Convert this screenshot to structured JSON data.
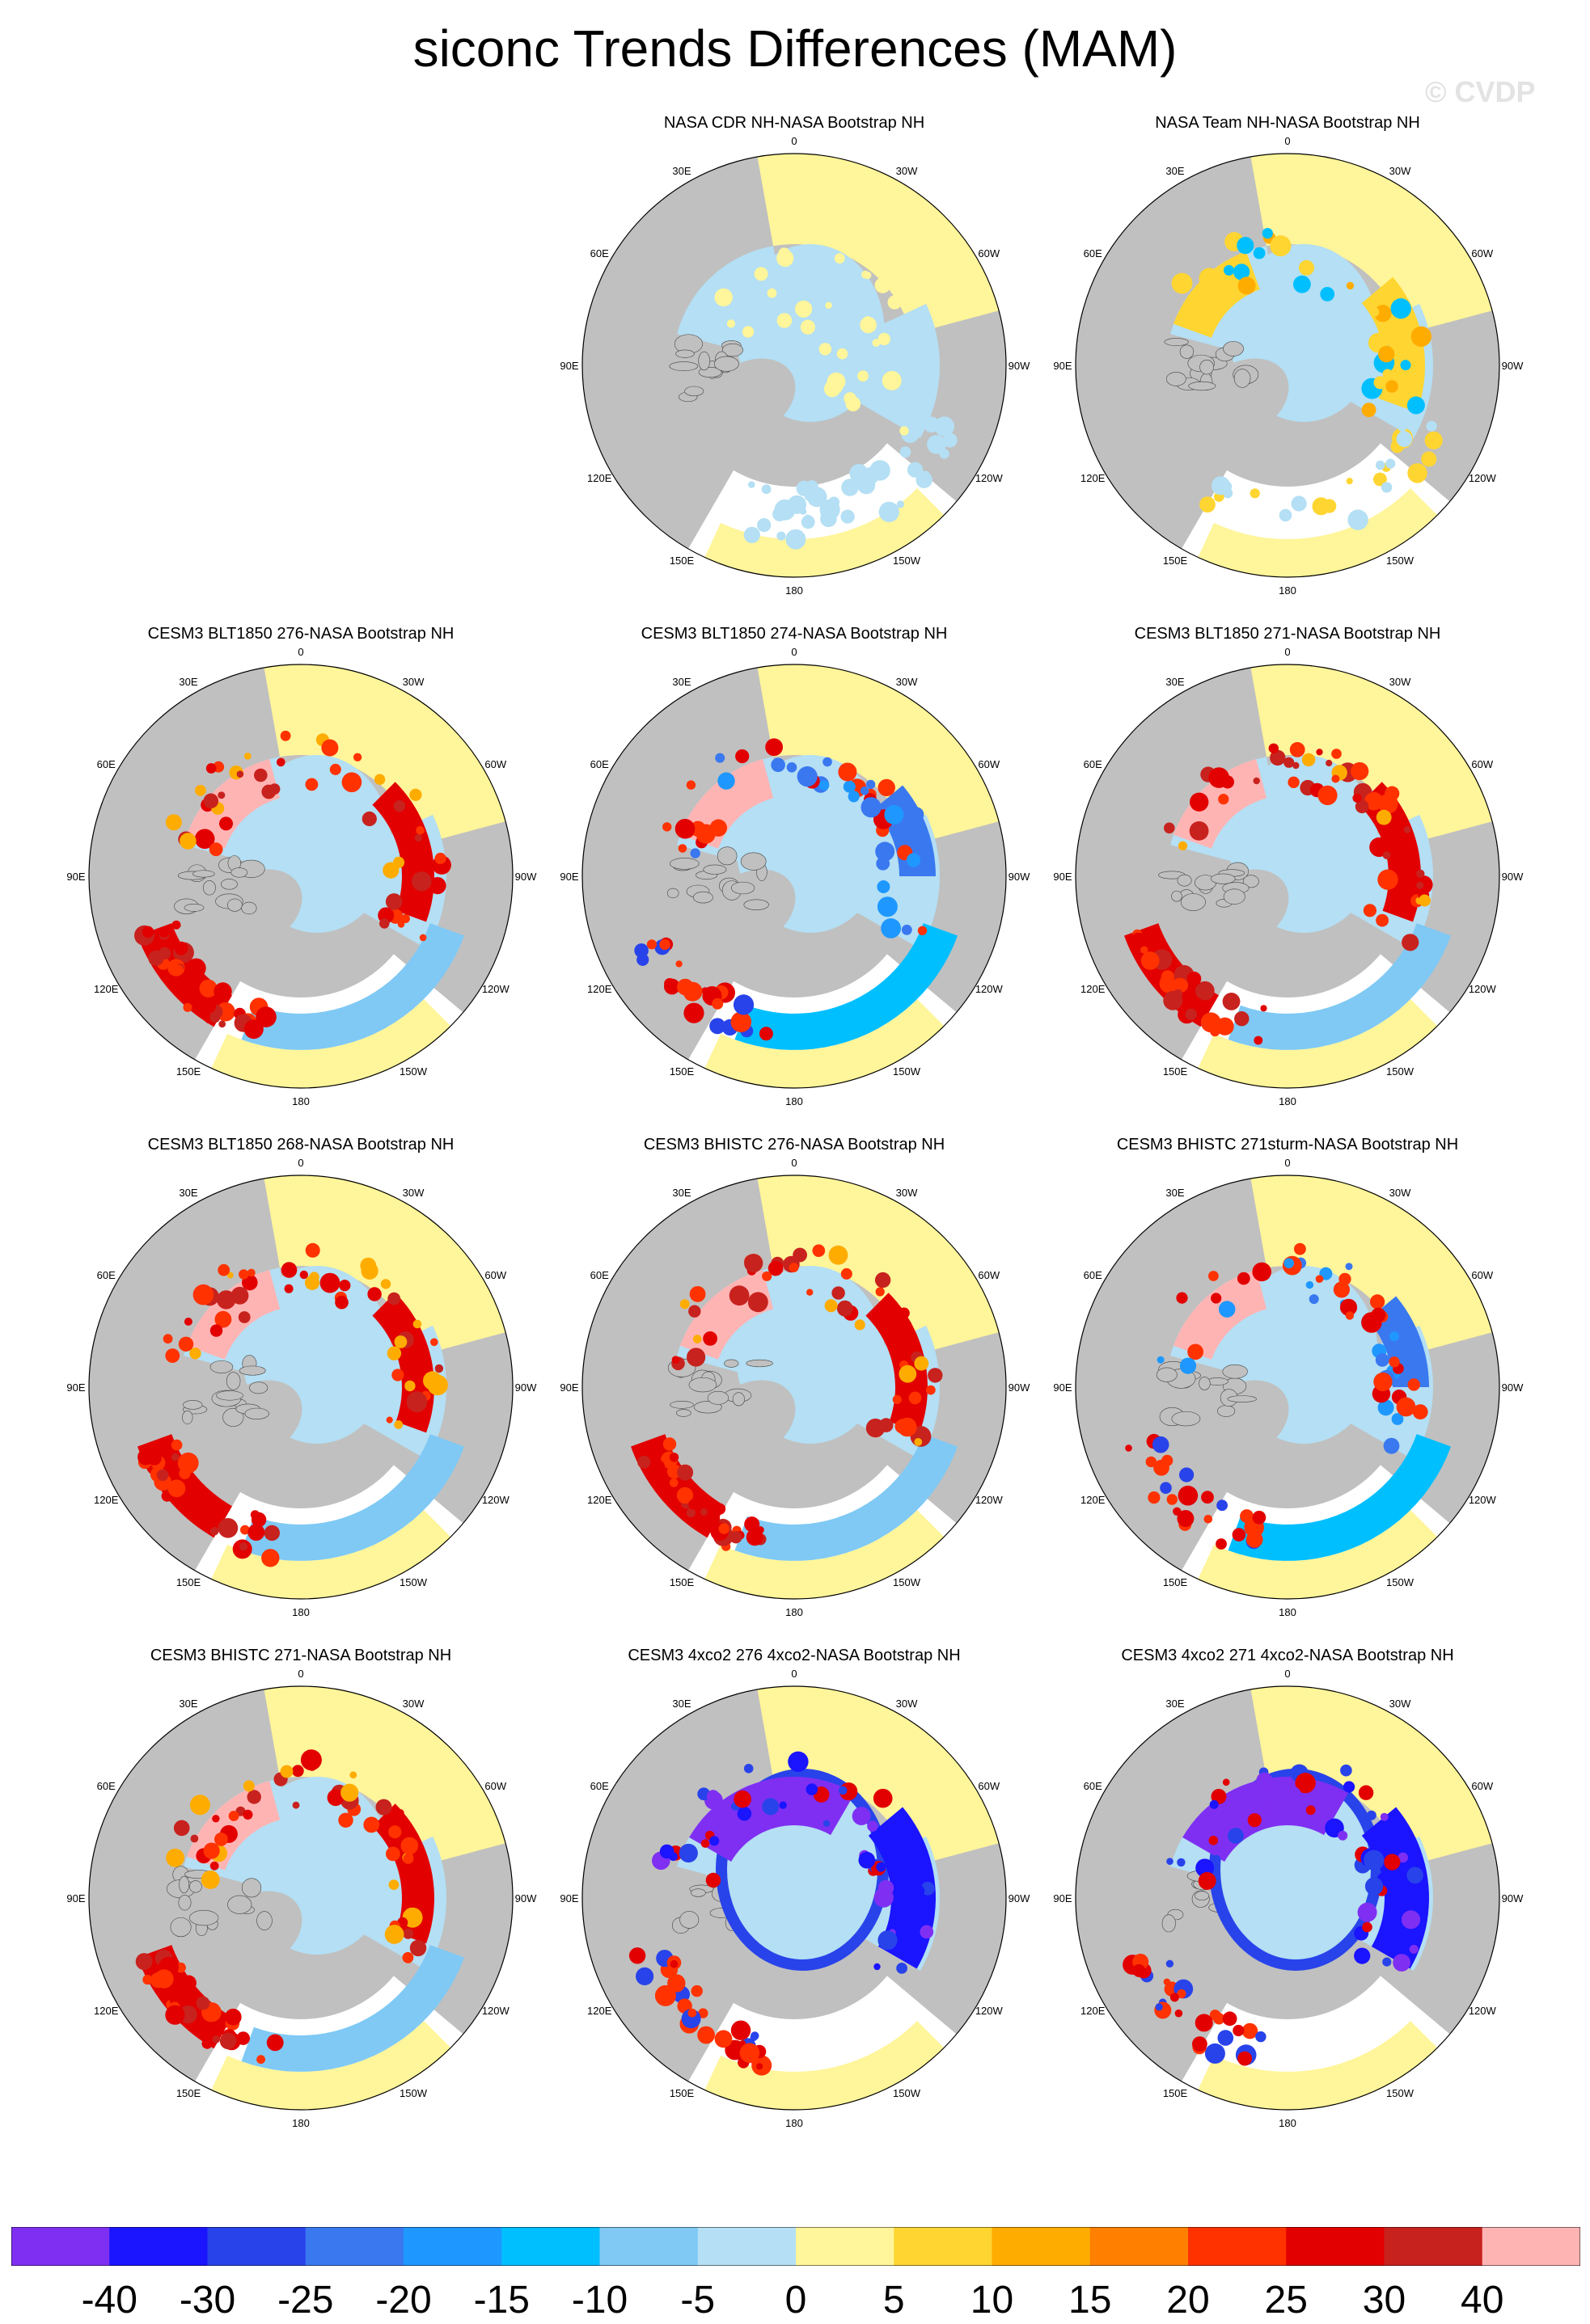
{
  "title": "siconc Trends Differences (MAM)",
  "watermark": "© CVDP",
  "colors": {
    "land": "#c0c0c0",
    "ocean_empty": "#ffffff",
    "levels": [
      "#7f2ff2",
      "#1a14ff",
      "#2843ea",
      "#3a78f0",
      "#1e98ff",
      "#00bfff",
      "#7fc9f4",
      "#b4dff4",
      "#fff59a",
      "#ffd531",
      "#ffac00",
      "#ff7f00",
      "#ff3200",
      "#e20000",
      "#c8221e",
      "#ffb4b4"
    ]
  },
  "colorbar": {
    "labels": [
      "-40",
      "-30",
      "-25",
      "-20",
      "-15",
      "-10",
      "-5",
      "0",
      "5",
      "10",
      "15",
      "20",
      "25",
      "30",
      "40"
    ]
  },
  "polar_labels": [
    "180",
    "150E",
    "120E",
    "90E",
    "60E",
    "30E",
    "0",
    "30W",
    "60W",
    "90W",
    "120W",
    "150W"
  ],
  "panels": [
    {
      "title": "NASA CDR NH-NASA Bootstrap NH",
      "pattern": "obs_cdr"
    },
    {
      "title": "NASA Team NH-NASA Bootstrap NH",
      "pattern": "obs_team"
    },
    {
      "title": "CESM3 BLT1850 276-NASA Bootstrap NH",
      "pattern": "warm"
    },
    {
      "title": "CESM3 BLT1850 274-NASA Bootstrap NH",
      "pattern": "mixed"
    },
    {
      "title": "CESM3 BLT1850 271-NASA Bootstrap NH",
      "pattern": "warm"
    },
    {
      "title": "CESM3 BLT1850 268-NASA Bootstrap NH",
      "pattern": "warm"
    },
    {
      "title": "CESM3 BHISTC 276-NASA Bootstrap NH",
      "pattern": "warm"
    },
    {
      "title": "CESM3 BHISTC 271sturm-NASA Bootstrap NH",
      "pattern": "mixed"
    },
    {
      "title": "CESM3 BHISTC 271-NASA Bootstrap NH",
      "pattern": "warm"
    },
    {
      "title": "CESM3 4xco2 276 4xco2-NASA Bootstrap NH",
      "pattern": "cold"
    },
    {
      "title": "CESM3 4xco2 271 4xco2-NASA Bootstrap NH",
      "pattern": "cold"
    }
  ]
}
